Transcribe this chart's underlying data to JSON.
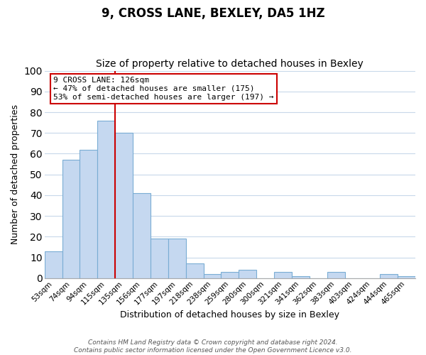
{
  "title": "9, CROSS LANE, BEXLEY, DA5 1HZ",
  "subtitle": "Size of property relative to detached houses in Bexley",
  "xlabel": "Distribution of detached houses by size in Bexley",
  "ylabel": "Number of detached properties",
  "bar_labels": [
    "53sqm",
    "74sqm",
    "94sqm",
    "115sqm",
    "135sqm",
    "156sqm",
    "177sqm",
    "197sqm",
    "218sqm",
    "238sqm",
    "259sqm",
    "280sqm",
    "300sqm",
    "321sqm",
    "341sqm",
    "362sqm",
    "383sqm",
    "403sqm",
    "424sqm",
    "444sqm",
    "465sqm"
  ],
  "bar_values": [
    13,
    57,
    62,
    76,
    70,
    41,
    19,
    19,
    7,
    2,
    3,
    4,
    0,
    3,
    1,
    0,
    3,
    0,
    0,
    2,
    1
  ],
  "bar_color": "#c5d8f0",
  "bar_edgecolor": "#7aadd4",
  "vline_x": 3.5,
  "vline_color": "#cc0000",
  "ylim": [
    0,
    100
  ],
  "annotation_title": "9 CROSS LANE: 126sqm",
  "annotation_line1": "← 47% of detached houses are smaller (175)",
  "annotation_line2": "53% of semi-detached houses are larger (197) →",
  "annotation_box_color": "#ffffff",
  "annotation_box_edgecolor": "#cc0000",
  "footer_line1": "Contains HM Land Registry data © Crown copyright and database right 2024.",
  "footer_line2": "Contains public sector information licensed under the Open Government Licence v3.0.",
  "title_fontsize": 12,
  "subtitle_fontsize": 10,
  "xlabel_fontsize": 9,
  "ylabel_fontsize": 9,
  "tick_fontsize": 7.5,
  "annotation_fontsize": 8,
  "footer_fontsize": 6.5,
  "background_color": "#ffffff",
  "grid_color": "#c8d8ea"
}
